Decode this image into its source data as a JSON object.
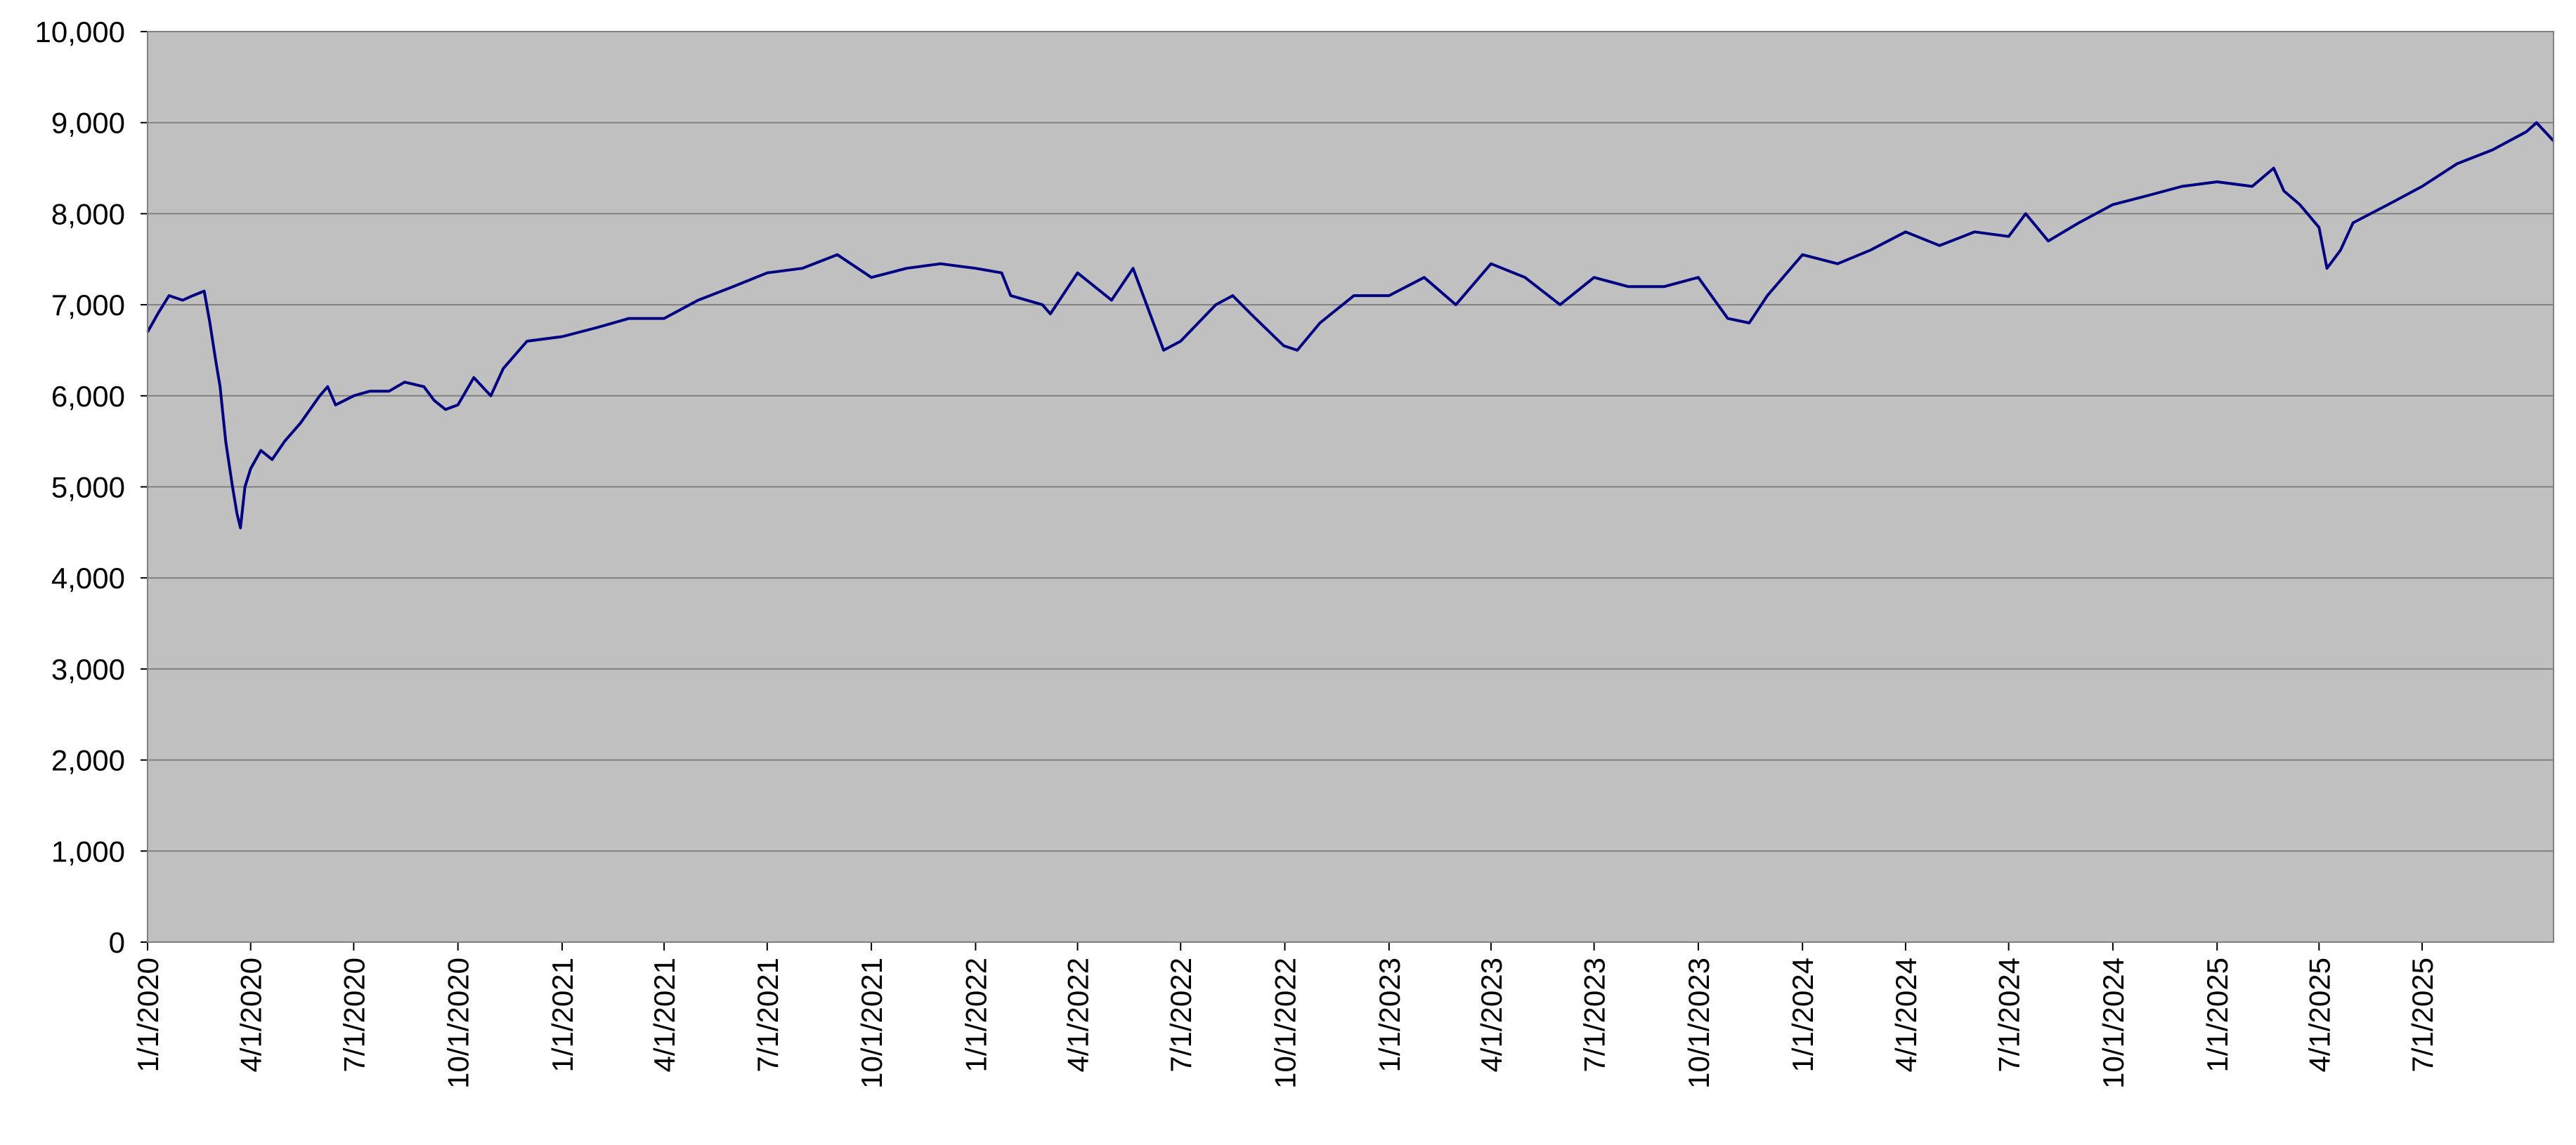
{
  "chart_data": {
    "type": "line",
    "title": "",
    "xlabel": "",
    "ylabel": "",
    "x_range": [
      "1/1/2020",
      "10/25/2025"
    ],
    "ylim": [
      0,
      10000
    ],
    "y_ticks": [
      "0",
      "1,000",
      "2,000",
      "3,000",
      "4,000",
      "5,000",
      "6,000",
      "7,000",
      "8,000",
      "9,000",
      "10,000"
    ],
    "x_ticks": [
      "1/1/2020",
      "4/1/2020",
      "7/1/2020",
      "10/1/2020",
      "1/1/2021",
      "4/1/2021",
      "7/1/2021",
      "10/1/2021",
      "1/1/2022",
      "4/1/2022",
      "7/1/2022",
      "10/1/2022",
      "1/1/2023",
      "4/1/2023",
      "7/1/2023",
      "10/1/2023",
      "1/1/2024",
      "4/1/2024",
      "7/1/2024",
      "10/1/2024",
      "1/1/2025",
      "4/1/2025",
      "7/1/2025"
    ],
    "grid": {
      "horizontal": true,
      "vertical": false
    },
    "legend": "none",
    "colors": {
      "plot_background": "#c0c0c0",
      "line": "#000080",
      "grid": "#808080",
      "axis": "#000000"
    },
    "series": [
      {
        "x": [
          "1/1/2020",
          "1/10/2020",
          "1/20/2020",
          "2/1/2020",
          "2/10/2020",
          "2/20/2020",
          "2/25/2020",
          "3/1/2020",
          "3/5/2020",
          "3/10/2020",
          "3/16/2020",
          "3/20/2020",
          "3/23/2020",
          "3/27/2020",
          "4/1/2020",
          "4/10/2020",
          "4/20/2020",
          "5/1/2020",
          "5/15/2020",
          "6/1/2020",
          "6/8/2020",
          "6/15/2020",
          "7/1/2020",
          "7/15/2020",
          "8/1/2020",
          "8/15/2020",
          "9/1/2020",
          "9/10/2020",
          "9/20/2020",
          "10/1/2020",
          "10/15/2020",
          "10/30/2020",
          "11/10/2020",
          "12/1/2020",
          "1/1/2021",
          "2/1/2021",
          "3/1/2021",
          "4/1/2021",
          "5/1/2021",
          "6/1/2021",
          "7/1/2021",
          "8/1/2021",
          "9/1/2021",
          "10/1/2021",
          "11/1/2021",
          "12/1/2021",
          "1/1/2022",
          "1/24/2022",
          "2/1/2022",
          "3/1/2022",
          "3/8/2022",
          "4/1/2022",
          "5/1/2022",
          "5/20/2022",
          "6/1/2022",
          "6/16/2022",
          "7/1/2022",
          "8/1/2022",
          "8/16/2022",
          "9/1/2022",
          "9/30/2022",
          "10/12/2022",
          "11/1/2022",
          "12/1/2022",
          "1/1/2023",
          "2/1/2023",
          "3/1/2023",
          "4/1/2023",
          "5/1/2023",
          "6/1/2023",
          "7/1/2023",
          "7/31/2023",
          "9/1/2023",
          "10/1/2023",
          "10/27/2023",
          "11/15/2023",
          "12/1/2023",
          "1/1/2024",
          "2/1/2024",
          "3/1/2024",
          "4/1/2024",
          "5/1/2024",
          "6/1/2024",
          "7/1/2024",
          "7/16/2024",
          "8/5/2024",
          "9/1/2024",
          "10/1/2024",
          "11/1/2024",
          "12/1/2024",
          "1/1/2025",
          "2/1/2025",
          "2/20/2025",
          "3/1/2025",
          "3/15/2025",
          "4/1/2025",
          "4/8/2025",
          "4/20/2025",
          "5/1/2025",
          "6/1/2025",
          "7/1/2025",
          "8/1/2025",
          "9/1/2025",
          "10/1/2025",
          "10/10/2025",
          "10/25/2025"
        ],
        "y": [
          6700,
          6900,
          7100,
          7050,
          7100,
          7150,
          6800,
          6400,
          6100,
          5500,
          5000,
          4700,
          4550,
          5000,
          5200,
          5400,
          5300,
          5500,
          5700,
          6000,
          6100,
          5900,
          6000,
          6050,
          6050,
          6150,
          6100,
          5950,
          5850,
          5900,
          6200,
          6000,
          6300,
          6600,
          6650,
          6750,
          6850,
          6850,
          7050,
          7200,
          7350,
          7400,
          7550,
          7300,
          7400,
          7450,
          7400,
          7350,
          7100,
          7000,
          6900,
          7350,
          7050,
          7400,
          7000,
          6500,
          6600,
          7000,
          7100,
          6900,
          6550,
          6500,
          6800,
          7100,
          7100,
          7300,
          7000,
          7450,
          7300,
          7000,
          7300,
          7200,
          7200,
          7300,
          6850,
          6800,
          7100,
          7550,
          7450,
          7600,
          7800,
          7650,
          7800,
          7750,
          8000,
          7700,
          7900,
          8100,
          8200,
          8300,
          8350,
          8300,
          8500,
          8250,
          8100,
          7850,
          7400,
          7600,
          7900,
          8100,
          8300,
          8550,
          8700,
          8900,
          9000,
          8800
        ]
      }
    ]
  }
}
